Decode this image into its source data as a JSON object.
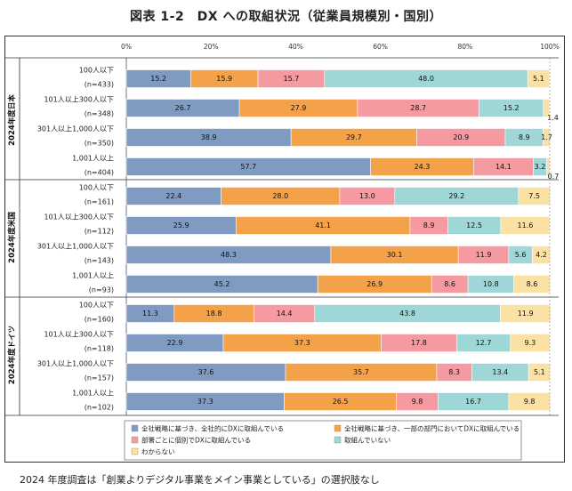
{
  "title": "図表 1-2　DX への取組状況（従業員規模別・国別）",
  "footnote": "2024 年度調査は「創業よりデジタル事業をメイン事業としている」の選択肢なし",
  "chart_data": {
    "type": "bar",
    "stacked": "horizontal-100",
    "x_ticks": [
      "0%",
      "20%",
      "40%",
      "60%",
      "80%",
      "100%"
    ],
    "xlim": [
      0,
      100
    ],
    "legend": [
      {
        "label": "全社戦略に基づき、全社的にDXに取組んでいる",
        "color": "#7f9bc1"
      },
      {
        "label": "全社戦略に基づき、一部の部門においてDXに取組んでいる",
        "color": "#f4a24a"
      },
      {
        "label": "部署ごとに個別でDXに取組んでいる",
        "color": "#f59aa0"
      },
      {
        "label": "取組んでいない",
        "color": "#9fd6d6"
      },
      {
        "label": "わからない",
        "color": "#fbe2a4"
      }
    ],
    "groups": [
      {
        "name": "2024年度日本",
        "rows": [
          {
            "label": "100人以下",
            "n": "(n=433)",
            "values": [
              15.2,
              15.9,
              15.7,
              48.0,
              5.1
            ],
            "labels": [
              "15.2",
              "15.9",
              "15.7",
              "48.0",
              "5.1"
            ]
          },
          {
            "label": "101人以上300人以下",
            "n": "(n=348)",
            "values": [
              26.7,
              27.9,
              28.7,
              15.2,
              1.4
            ],
            "labels": [
              "26.7",
              "27.9",
              "28.7",
              "15.2",
              "1.4"
            ]
          },
          {
            "label": "301人以上1,000人以下",
            "n": "(n=350)",
            "values": [
              38.9,
              29.7,
              20.9,
              8.9,
              1.7
            ],
            "labels": [
              "38.9",
              "29.7",
              "20.9",
              "8.9",
              "1.7"
            ]
          },
          {
            "label": "1,001人以上",
            "n": "(n=404)",
            "values": [
              57.7,
              24.3,
              14.1,
              3.2,
              0.7
            ],
            "labels": [
              "57.7",
              "24.3",
              "14.1",
              "3.2",
              "0.7"
            ]
          }
        ]
      },
      {
        "name": "2024年度米国",
        "rows": [
          {
            "label": "100人以下",
            "n": "(n=161)",
            "values": [
              22.4,
              28.0,
              13.0,
              29.2,
              7.5
            ],
            "labels": [
              "22.4",
              "28.0",
              "13.0",
              "29.2",
              "7.5"
            ]
          },
          {
            "label": "101人以上300人以下",
            "n": "(n=112)",
            "values": [
              25.9,
              41.1,
              8.9,
              12.5,
              11.6
            ],
            "labels": [
              "25.9",
              "41.1",
              "8.9",
              "12.5",
              "11.6"
            ]
          },
          {
            "label": "301人以上1,000人以下",
            "n": "(n=143)",
            "values": [
              48.3,
              30.1,
              11.9,
              5.6,
              4.2
            ],
            "labels": [
              "48.3",
              "30.1",
              "11.9",
              "5.6",
              "4.2"
            ]
          },
          {
            "label": "1,001人以上",
            "n": "(n=93)",
            "values": [
              45.2,
              26.9,
              8.6,
              10.8,
              8.6
            ],
            "labels": [
              "45.2",
              "26.9",
              "8.6",
              "10.8",
              "8.6"
            ]
          }
        ]
      },
      {
        "name": "2024年度ドイツ",
        "rows": [
          {
            "label": "100人以下",
            "n": "(n=160)",
            "values": [
              11.3,
              18.8,
              14.4,
              43.8,
              11.9
            ],
            "labels": [
              "11.3",
              "18.8",
              "14.4",
              "43.8",
              "11.9"
            ]
          },
          {
            "label": "101人以上300人以下",
            "n": "(n=118)",
            "values": [
              22.9,
              37.3,
              17.8,
              12.7,
              9.3
            ],
            "labels": [
              "22.9",
              "37.3",
              "17.8",
              "12.7",
              "9.3"
            ]
          },
          {
            "label": "301人以上1,000人以下",
            "n": "(n=157)",
            "values": [
              37.6,
              35.7,
              8.3,
              13.4,
              5.1
            ],
            "labels": [
              "37.6",
              "35.7",
              "8.3",
              "13.4",
              "5.1"
            ]
          },
          {
            "label": "1,001人以上",
            "n": "(n=102)",
            "values": [
              37.3,
              26.5,
              9.8,
              16.7,
              9.8
            ],
            "labels": [
              "37.3",
              "26.5",
              "9.8",
              "16.7",
              "9.8"
            ]
          }
        ]
      }
    ]
  }
}
